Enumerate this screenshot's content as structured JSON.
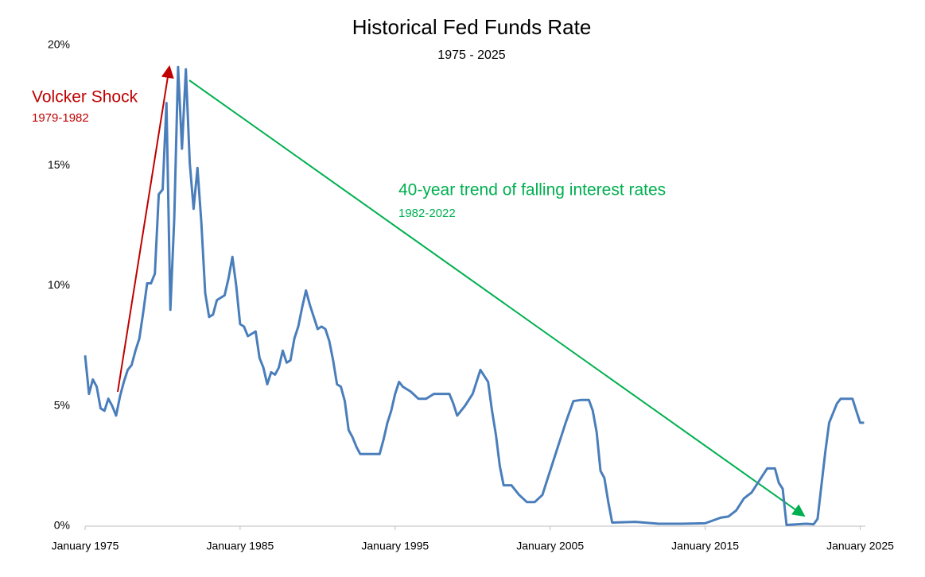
{
  "chart_data": {
    "type": "line",
    "title": "Historical Fed Funds Rate",
    "subtitle": "1975 - 2025",
    "annotations": [
      {
        "text": "Volcker Shock",
        "color": "#c00000"
      },
      {
        "text": "1979-1982",
        "color": "#c00000"
      },
      {
        "text": "40-year trend of falling interest rates",
        "color": "#00b050"
      },
      {
        "text": "1982-2022",
        "color": "#00b050"
      }
    ],
    "xlim": [
      "1975-01",
      "2025-05"
    ],
    "xticks": [
      {
        "value": "1975-01",
        "label": "January 1975"
      },
      {
        "value": "1985-01",
        "label": "January 1985"
      },
      {
        "value": "1995-01",
        "label": "January 1995"
      },
      {
        "value": "2005-01",
        "label": "January 2005"
      },
      {
        "value": "2015-01",
        "label": "January 2015"
      },
      {
        "value": "2025-01",
        "label": "January 2025"
      }
    ],
    "ylim": [
      0,
      20
    ],
    "yticks": [
      {
        "value": 0,
        "label": "0%"
      },
      {
        "value": 5,
        "label": "5%"
      },
      {
        "value": 10,
        "label": "10%"
      },
      {
        "value": 15,
        "label": "15%"
      },
      {
        "value": 20,
        "label": "20%"
      }
    ],
    "grid": false,
    "x": [
      "1975-01",
      "1975-04",
      "1975-07",
      "1975-10",
      "1976-01",
      "1976-04",
      "1976-07",
      "1976-10",
      "1977-01",
      "1977-04",
      "1977-07",
      "1977-10",
      "1978-01",
      "1978-04",
      "1978-07",
      "1978-10",
      "1979-01",
      "1979-04",
      "1979-07",
      "1979-10",
      "1980-01",
      "1980-04",
      "1980-07",
      "1980-10",
      "1981-01",
      "1981-04",
      "1981-07",
      "1981-10",
      "1982-01",
      "1982-04",
      "1982-07",
      "1982-10",
      "1983-01",
      "1983-04",
      "1983-07",
      "1983-10",
      "1984-01",
      "1984-04",
      "1984-07",
      "1984-10",
      "1985-01",
      "1985-04",
      "1985-07",
      "1985-10",
      "1986-01",
      "1986-04",
      "1986-07",
      "1986-10",
      "1987-01",
      "1987-04",
      "1987-07",
      "1987-10",
      "1988-01",
      "1988-04",
      "1988-07",
      "1988-10",
      "1989-01",
      "1989-04",
      "1989-07",
      "1989-10",
      "1990-01",
      "1990-04",
      "1990-07",
      "1990-10",
      "1991-01",
      "1991-04",
      "1991-07",
      "1991-10",
      "1992-01",
      "1992-04",
      "1992-07",
      "1992-10",
      "1993-07",
      "1994-01",
      "1994-04",
      "1994-07",
      "1994-10",
      "1995-01",
      "1995-04",
      "1995-07",
      "1995-10",
      "1996-01",
      "1996-07",
      "1997-01",
      "1997-07",
      "1998-01",
      "1998-07",
      "1998-10",
      "1999-01",
      "1999-07",
      "2000-01",
      "2000-07",
      "2001-01",
      "2001-04",
      "2001-07",
      "2001-10",
      "2002-01",
      "2002-07",
      "2003-01",
      "2003-07",
      "2004-01",
      "2004-07",
      "2004-10",
      "2005-01",
      "2005-07",
      "2006-01",
      "2006-07",
      "2007-01",
      "2007-07",
      "2007-10",
      "2008-01",
      "2008-04",
      "2008-07",
      "2008-10",
      "2009-01",
      "2010-07",
      "2012-01",
      "2013-07",
      "2015-01",
      "2016-01",
      "2016-07",
      "2017-01",
      "2017-07",
      "2018-01",
      "2018-07",
      "2019-01",
      "2019-07",
      "2019-10",
      "2020-01",
      "2020-04",
      "2021-07",
      "2022-01",
      "2022-04",
      "2022-07",
      "2022-10",
      "2023-01",
      "2023-07",
      "2023-10",
      "2024-07",
      "2024-10",
      "2025-01",
      "2025-04"
    ],
    "series": [
      {
        "name": "Fed Funds Rate",
        "color": "#4a7ebb",
        "values": [
          7.1,
          5.5,
          6.1,
          5.8,
          4.9,
          4.8,
          5.3,
          5.0,
          4.6,
          5.4,
          6.0,
          6.5,
          6.7,
          7.3,
          7.8,
          8.9,
          10.1,
          10.1,
          10.5,
          13.8,
          14.0,
          17.6,
          9.0,
          12.8,
          19.1,
          15.7,
          19.0,
          15.1,
          13.2,
          14.9,
          12.6,
          9.7,
          8.7,
          8.8,
          9.4,
          9.5,
          9.6,
          10.3,
          11.2,
          10.0,
          8.4,
          8.3,
          7.9,
          8.0,
          8.1,
          7.0,
          6.6,
          5.9,
          6.4,
          6.3,
          6.6,
          7.3,
          6.8,
          6.9,
          7.8,
          8.3,
          9.1,
          9.8,
          9.2,
          8.7,
          8.2,
          8.3,
          8.2,
          7.7,
          6.9,
          5.9,
          5.8,
          5.2,
          4.0,
          3.7,
          3.3,
          3.0,
          3.0,
          3.0,
          3.6,
          4.3,
          4.8,
          5.5,
          6.0,
          5.8,
          5.7,
          5.6,
          5.3,
          5.3,
          5.5,
          5.5,
          5.5,
          5.1,
          4.6,
          5.0,
          5.5,
          6.5,
          6.0,
          4.8,
          3.8,
          2.5,
          1.7,
          1.7,
          1.3,
          1.0,
          1.0,
          1.3,
          1.8,
          2.3,
          3.3,
          4.3,
          5.2,
          5.25,
          5.25,
          4.8,
          3.9,
          2.3,
          2.0,
          1.0,
          0.15,
          0.18,
          0.1,
          0.1,
          0.12,
          0.35,
          0.4,
          0.65,
          1.15,
          1.4,
          1.9,
          2.4,
          2.4,
          1.8,
          1.55,
          0.05,
          0.1,
          0.08,
          0.3,
          1.7,
          3.1,
          4.3,
          5.1,
          5.3,
          5.3,
          4.8,
          4.3,
          4.3
        ]
      }
    ]
  }
}
